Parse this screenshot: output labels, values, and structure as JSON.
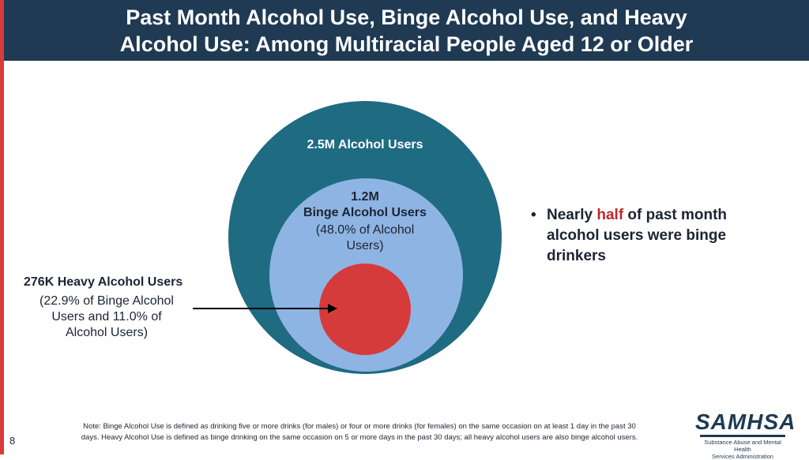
{
  "header": {
    "title_line1": "Past Month Alcohol Use, Binge Alcohol Use, and Heavy",
    "title_line2": "Alcohol Use: Among Multiracial People Aged 12 or Older"
  },
  "diagram": {
    "outer": {
      "label": "2.5M Alcohol Users"
    },
    "middle": {
      "count": "1.2M",
      "label": "Binge Alcohol Users",
      "percent_line1": "(48.0% of Alcohol",
      "percent_line2": "Users)"
    },
    "inner": {
      "title": "276K Heavy Alcohol Users",
      "pct_line1": "(22.9% of Binge Alcohol",
      "pct_line2": "Users and 11.0% of",
      "pct_line3": "Alcohol Users)"
    }
  },
  "bullet": {
    "symbol": "•",
    "before": "Nearly ",
    "highlight": "half",
    "after": " of past month alcohol users were binge drinkers"
  },
  "note": {
    "line1": "Note: Binge Alcohol Use is defined as drinking five or more drinks (for males) or four or more drinks (for females) on the same occasion on at least 1 day in the past 30",
    "line2": "days. Heavy Alcohol Use is defined as binge drinking on the same occasion on 5 or more days in the past 30 days; all heavy alcohol users are also binge alcohol users."
  },
  "page_number": "8",
  "logo": {
    "name": "SAMHSA",
    "subtitle_line1": "Substance Abuse and Mental Health",
    "subtitle_line2": "Services Administration"
  },
  "colors": {
    "header": "#1f3a52",
    "accent_bar": "#d83b3b",
    "outer_circle": "#1e6b82",
    "middle_circle": "#8eb4e3",
    "inner_circle": "#d63b3b",
    "highlight": "#c0282d"
  }
}
